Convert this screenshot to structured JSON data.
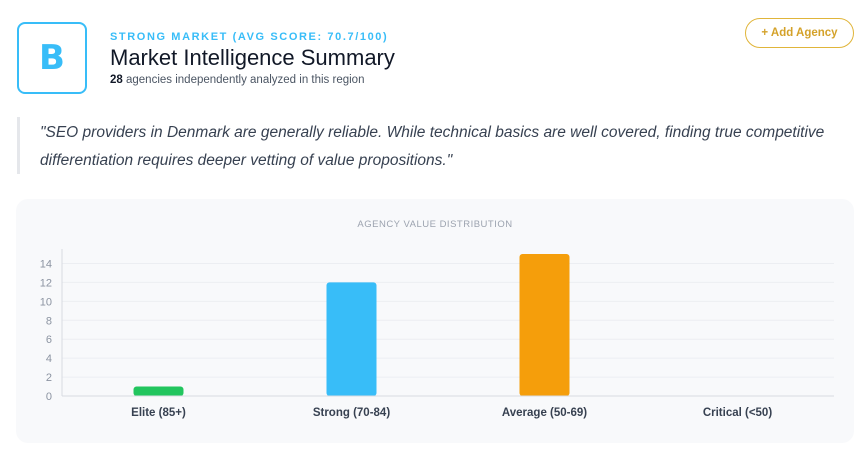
{
  "header": {
    "grade": "B",
    "eyebrow": "STRONG MARKET (AVG SCORE: 70.7/100)",
    "title": "Market Intelligence Summary",
    "agency_count": "28",
    "subtitle_rest": " agencies independently analyzed in this region",
    "add_button_label": "+ Add Agency"
  },
  "quote": "\"SEO providers in Denmark are generally reliable. While technical basics are well covered, finding true competitive differentiation requires deeper vetting of value propositions.\"",
  "colors": {
    "accent": "#38bdf8",
    "gold": "#e0b53a"
  },
  "chart_data": {
    "type": "bar",
    "title": "AGENCY VALUE DISTRIBUTION",
    "categories": [
      "Elite (85+)",
      "Strong (70-84)",
      "Average (50-69)",
      "Critical (<50)"
    ],
    "values": [
      1,
      12,
      15,
      0
    ],
    "colors": [
      "#22c55e",
      "#38bdf8",
      "#f59e0b",
      "#ef4444"
    ],
    "ylim": [
      0,
      15
    ],
    "yticks": [
      0,
      2,
      4,
      6,
      8,
      10,
      12,
      14
    ],
    "xlabel": "",
    "ylabel": "",
    "grid": true
  }
}
